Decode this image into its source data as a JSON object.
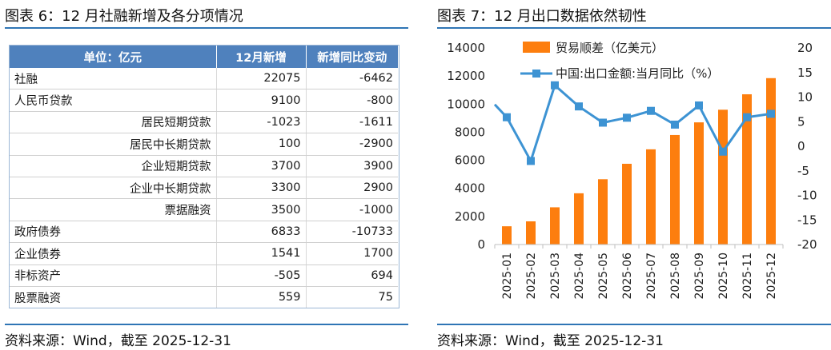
{
  "left_panel": {
    "title": "图表 6：12 月社融新增及各分项情况",
    "source": "资料来源：Wind，截至 2025-12-31",
    "table": {
      "headers": [
        "单位：亿元",
        "12月新增",
        "新增同比变动"
      ],
      "rows": [
        {
          "label": "社融",
          "sub": false,
          "v1": "22075",
          "v2": "-6462"
        },
        {
          "label": "人民币贷款",
          "sub": false,
          "v1": "9100",
          "v2": "-800"
        },
        {
          "label": "居民短期贷款",
          "sub": true,
          "v1": "-1023",
          "v2": "-1611"
        },
        {
          "label": "居民中长期贷款",
          "sub": true,
          "v1": "100",
          "v2": "-2900"
        },
        {
          "label": "企业短期贷款",
          "sub": true,
          "v1": "3700",
          "v2": "3900"
        },
        {
          "label": "企业中长期贷款",
          "sub": true,
          "v1": "3300",
          "v2": "2900"
        },
        {
          "label": "票据融资",
          "sub": true,
          "v1": "3500",
          "v2": "-1000"
        },
        {
          "label": "政府债券",
          "sub": false,
          "v1": "6833",
          "v2": "-10733"
        },
        {
          "label": "企业债券",
          "sub": false,
          "v1": "1541",
          "v2": "1700"
        },
        {
          "label": "非标资产",
          "sub": false,
          "v1": "-505",
          "v2": "694"
        },
        {
          "label": "股票融资",
          "sub": false,
          "v1": "559",
          "v2": "75"
        }
      ]
    }
  },
  "right_panel": {
    "title": "图表 7：12 月出口数据依然韧性",
    "source": "资料来源：Wind，截至 2025-12-31"
  },
  "colors": {
    "accent": "#2f75b5",
    "header": "#4f81bd",
    "bar": "#fd7e0e",
    "line": "#3d93d3"
  },
  "chart_data": {
    "type": "bar",
    "categories": [
      "2025-01",
      "2025-02",
      "2025-03",
      "2025-04",
      "2025-05",
      "2025-06",
      "2025-07",
      "2025-08",
      "2025-09",
      "2025-10",
      "2025-11",
      "2025-12"
    ],
    "series": [
      {
        "name": "贸易顺差（亿美元）",
        "type": "bar",
        "axis": "left",
        "values": [
          1300,
          1650,
          2650,
          3650,
          4650,
          5750,
          6780,
          7800,
          8700,
          9600,
          10700,
          11850
        ]
      },
      {
        "name": "中国:出口金额:当月同比（%）",
        "type": "line",
        "axis": "right",
        "values": [
          5.9,
          -3.0,
          12.4,
          8.1,
          4.8,
          5.8,
          7.2,
          4.4,
          8.3,
          -1.1,
          5.9,
          6.6
        ]
      }
    ],
    "y_left": {
      "min": 0,
      "max": 14000,
      "ticks": [
        "0",
        "2000",
        "4000",
        "6000",
        "8000",
        "10000",
        "12000",
        "14000"
      ]
    },
    "y_right": {
      "min": -20,
      "max": 20,
      "ticks": [
        "-20",
        "-15",
        "-10",
        "-5",
        "0",
        "5",
        "10",
        "15",
        "20"
      ]
    },
    "line_start_value": 8.5,
    "grid": false,
    "legend_position": "top-left"
  }
}
